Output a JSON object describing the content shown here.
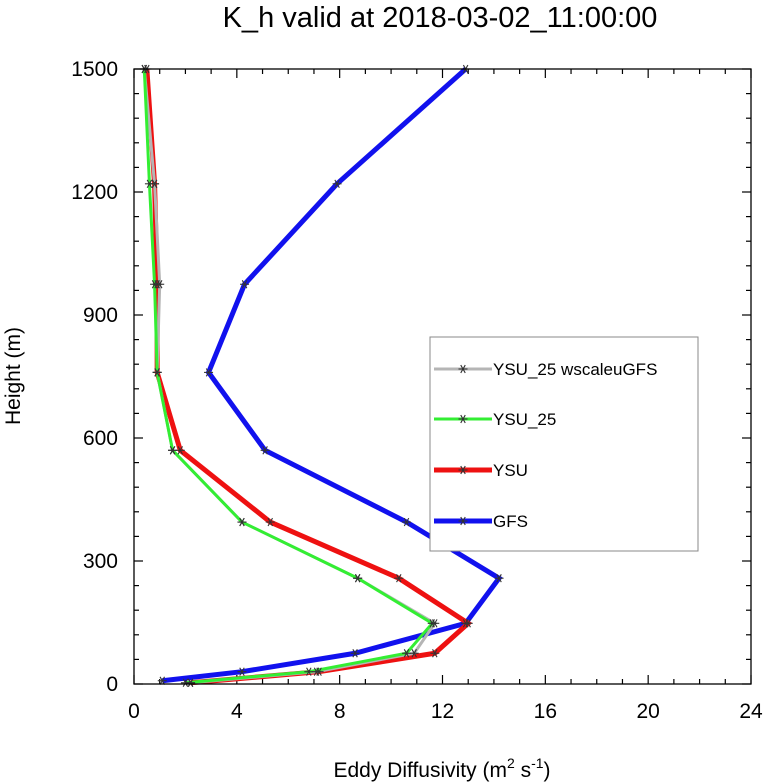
{
  "chart_data": {
    "type": "line",
    "title": "K_h valid at 2018-03-02_11:00:00",
    "xlabel": "Eddy Diffusivity (m",
    "xlabel_sup1": "2",
    "xlabel_mid": " s",
    "xlabel_sup2": "-1",
    "xlabel_end": ")",
    "ylabel": "Height (m)",
    "xlim": [
      0,
      24
    ],
    "ylim": [
      0,
      1500
    ],
    "xticks": [
      0,
      4,
      8,
      12,
      16,
      20,
      24
    ],
    "yticks": [
      0,
      300,
      600,
      900,
      1200,
      1500
    ],
    "grid": false,
    "legend_position": "right",
    "series": [
      {
        "name": "YSU_25 wscaleuGFS",
        "color": "#b5b5b5",
        "linewidth": 3,
        "marker": "asterisk",
        "x": [
          2.2,
          7.1,
          10.9,
          11.7,
          8.7,
          4.2,
          1.5,
          0.9,
          1.0,
          0.8,
          0.4
        ],
        "y": [
          3,
          30,
          75,
          148,
          258,
          395,
          570,
          760,
          975,
          1220,
          1500
        ]
      },
      {
        "name": "YSU_25",
        "color": "#33ee33",
        "linewidth": 3,
        "marker": "asterisk",
        "x": [
          2.0,
          6.8,
          10.6,
          11.6,
          8.7,
          4.2,
          1.5,
          0.9,
          0.8,
          0.6,
          0.4
        ],
        "y": [
          3,
          30,
          75,
          148,
          258,
          395,
          570,
          760,
          975,
          1220,
          1500
        ]
      },
      {
        "name": "YSU",
        "color": "#ee1111",
        "linewidth": 5,
        "marker": "asterisk",
        "x": [
          2.2,
          7.2,
          11.7,
          13.0,
          10.3,
          5.3,
          1.8,
          0.9,
          0.9,
          0.8,
          0.5
        ],
        "y": [
          3,
          30,
          75,
          148,
          258,
          395,
          570,
          760,
          975,
          1220,
          1500
        ]
      },
      {
        "name": "GFS",
        "color": "#1111ee",
        "linewidth": 5,
        "marker": "asterisk",
        "x": [
          1.1,
          4.2,
          8.6,
          12.9,
          14.2,
          10.6,
          5.1,
          2.9,
          4.3,
          7.9,
          12.9
        ],
        "y": [
          8,
          30,
          75,
          148,
          258,
          395,
          570,
          760,
          975,
          1220,
          1500
        ]
      }
    ]
  }
}
